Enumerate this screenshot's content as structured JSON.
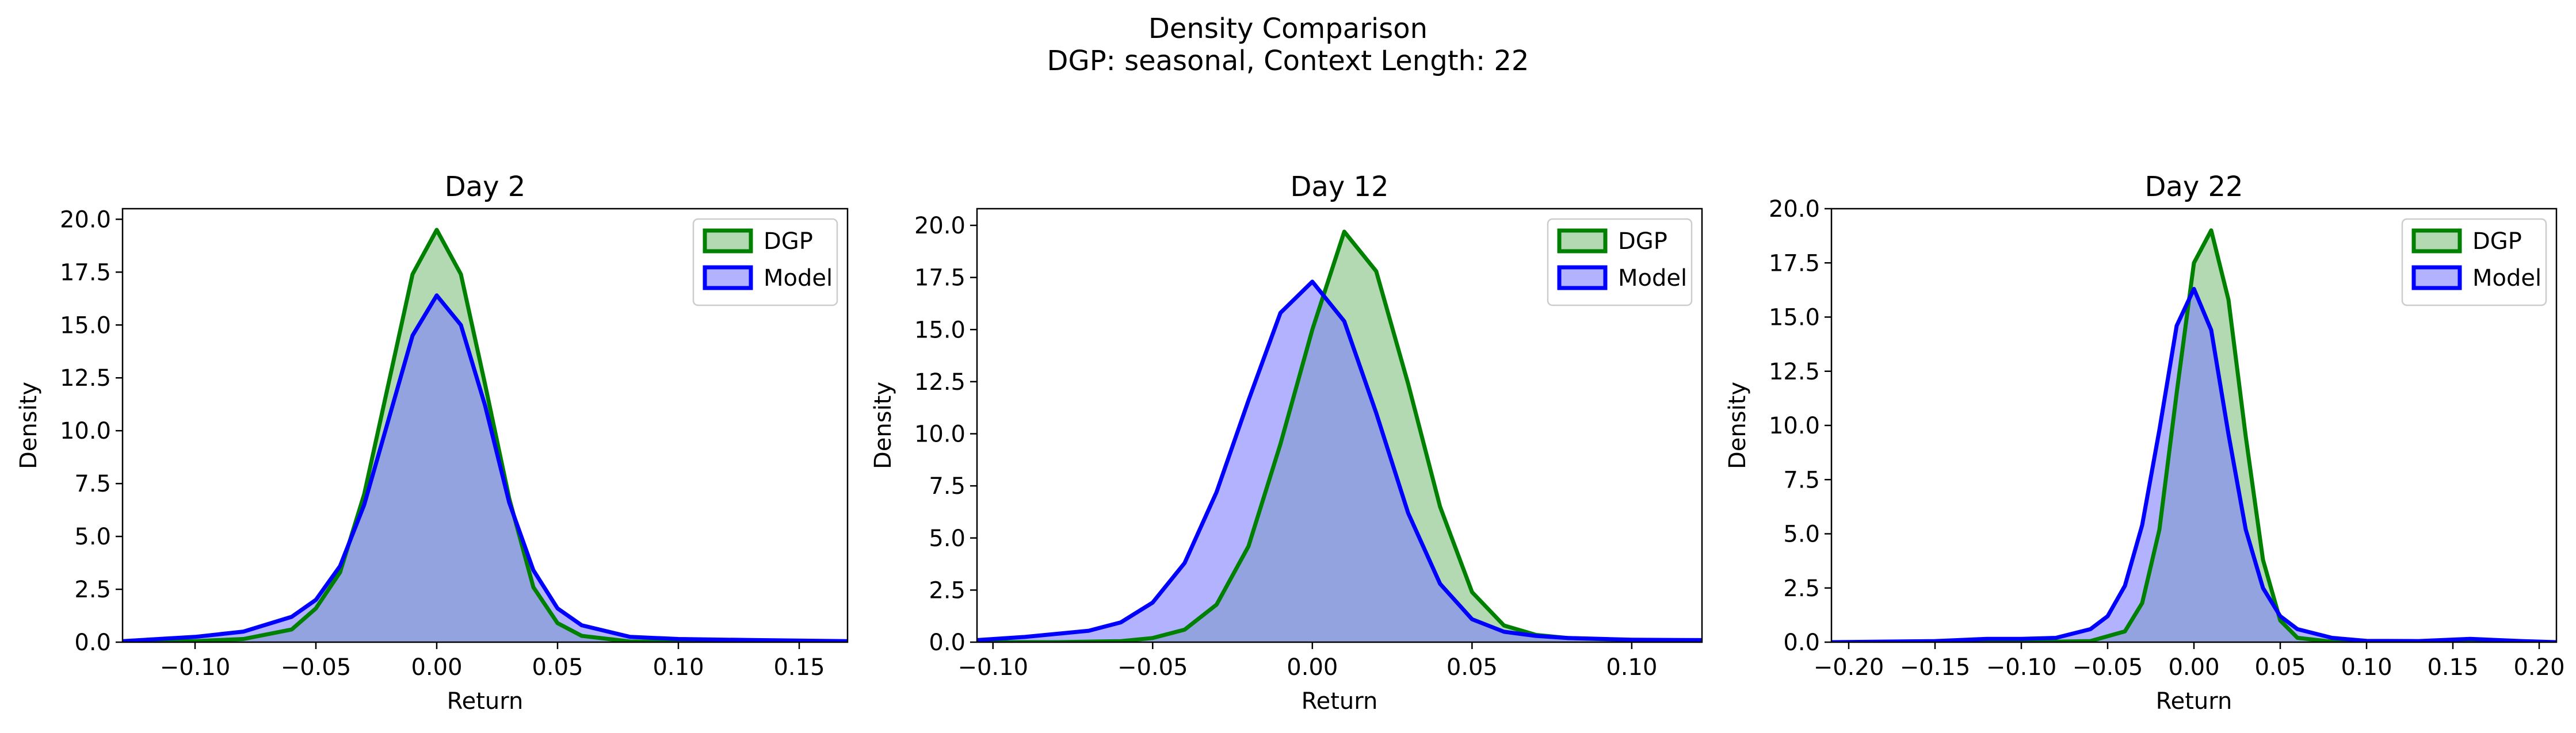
{
  "figure": {
    "title": "Density Comparison",
    "subtitle": "DGP: seasonal, Context Length: 22"
  },
  "colors": {
    "dgp_line": "#008000",
    "dgp_fill": "#7fbf7f",
    "model_line": "#0000ff",
    "model_fill": "#7f7fff"
  },
  "chart_data": [
    {
      "type": "area",
      "title": "Day 2",
      "xlabel": "Return",
      "ylabel": "Density",
      "xlim": [
        -0.13,
        0.17
      ],
      "ylim": [
        0,
        20.5
      ],
      "xticks": [
        -0.1,
        -0.05,
        0.0,
        0.05,
        0.1,
        0.15
      ],
      "xtick_labels": [
        "−0.10",
        "−0.05",
        "0.00",
        "0.05",
        "0.10",
        "0.15"
      ],
      "yticks": [
        0,
        2.5,
        5,
        7.5,
        10,
        12.5,
        15,
        17.5,
        20
      ],
      "ytick_labels": [
        "0.0",
        "2.5",
        "5.0",
        "7.5",
        "10.0",
        "12.5",
        "15.0",
        "17.5",
        "20.0"
      ],
      "legend": "top-right",
      "grid": false,
      "series": [
        {
          "name": "DGP",
          "x": [
            -0.13,
            -0.1,
            -0.08,
            -0.06,
            -0.05,
            -0.04,
            -0.03,
            -0.02,
            -0.01,
            0.0,
            0.01,
            0.02,
            0.03,
            0.04,
            0.05,
            0.06,
            0.08,
            0.1,
            0.13,
            0.17
          ],
          "y": [
            0.0,
            0.05,
            0.15,
            0.6,
            1.6,
            3.3,
            7.0,
            12.2,
            17.4,
            19.5,
            17.4,
            12.2,
            6.8,
            2.6,
            0.9,
            0.3,
            0.03,
            0.0,
            0.0,
            0.0
          ]
        },
        {
          "name": "Model",
          "x": [
            -0.13,
            -0.1,
            -0.08,
            -0.06,
            -0.05,
            -0.04,
            -0.03,
            -0.02,
            -0.01,
            0.0,
            0.01,
            0.02,
            0.03,
            0.04,
            0.05,
            0.06,
            0.08,
            0.1,
            0.13,
            0.17
          ],
          "y": [
            0.05,
            0.25,
            0.5,
            1.2,
            2.0,
            3.6,
            6.5,
            10.5,
            14.5,
            16.4,
            15.0,
            11.2,
            6.6,
            3.4,
            1.6,
            0.8,
            0.25,
            0.15,
            0.1,
            0.05
          ]
        }
      ]
    },
    {
      "type": "area",
      "title": "Day 12",
      "xlabel": "Return",
      "ylabel": "Density",
      "xlim": [
        -0.105,
        0.122
      ],
      "ylim": [
        0,
        20.8
      ],
      "xticks": [
        -0.1,
        -0.05,
        0.0,
        0.05,
        0.1
      ],
      "xtick_labels": [
        "−0.10",
        "−0.05",
        "0.00",
        "0.05",
        "0.10"
      ],
      "yticks": [
        0,
        2.5,
        5,
        7.5,
        10,
        12.5,
        15,
        17.5,
        20
      ],
      "ytick_labels": [
        "0.0",
        "2.5",
        "5.0",
        "7.5",
        "10.0",
        "12.5",
        "15.0",
        "17.5",
        "20.0"
      ],
      "legend": "top-right",
      "grid": false,
      "series": [
        {
          "name": "DGP",
          "x": [
            -0.105,
            -0.08,
            -0.06,
            -0.05,
            -0.04,
            -0.03,
            -0.02,
            -0.01,
            0.0,
            0.01,
            0.02,
            0.03,
            0.04,
            0.05,
            0.06,
            0.07,
            0.08,
            0.1,
            0.122
          ],
          "y": [
            0.0,
            0.0,
            0.05,
            0.2,
            0.6,
            1.8,
            4.6,
            9.5,
            15.0,
            19.7,
            17.8,
            12.4,
            6.5,
            2.4,
            0.8,
            0.35,
            0.2,
            0.1,
            0.05
          ]
        },
        {
          "name": "Model",
          "x": [
            -0.105,
            -0.09,
            -0.07,
            -0.06,
            -0.05,
            -0.04,
            -0.03,
            -0.02,
            -0.01,
            0.0,
            0.01,
            0.02,
            0.03,
            0.04,
            0.05,
            0.06,
            0.07,
            0.08,
            0.1,
            0.122
          ],
          "y": [
            0.1,
            0.25,
            0.55,
            0.95,
            1.9,
            3.8,
            7.2,
            11.6,
            15.8,
            17.3,
            15.4,
            11.0,
            6.2,
            2.8,
            1.1,
            0.5,
            0.3,
            0.2,
            0.12,
            0.1
          ]
        }
      ]
    },
    {
      "type": "area",
      "title": "Day 22",
      "xlabel": "Return",
      "ylabel": "Density",
      "xlim": [
        -0.21,
        0.21
      ],
      "ylim": [
        0,
        20.0
      ],
      "xticks": [
        -0.2,
        -0.15,
        -0.1,
        -0.05,
        0.0,
        0.05,
        0.1,
        0.15,
        0.2
      ],
      "xtick_labels": [
        "−0.20",
        "−0.15",
        "−0.10",
        "−0.05",
        "0.00",
        "0.05",
        "0.10",
        "0.15",
        "0.20"
      ],
      "yticks": [
        0,
        2.5,
        5,
        7.5,
        10,
        12.5,
        15,
        17.5,
        20
      ],
      "ytick_labels": [
        "0.0",
        "2.5",
        "5.0",
        "7.5",
        "10.0",
        "12.5",
        "15.0",
        "17.5",
        "20.0"
      ],
      "legend": "top-right",
      "grid": false,
      "series": [
        {
          "name": "DGP",
          "x": [
            -0.21,
            -0.1,
            -0.06,
            -0.04,
            -0.03,
            -0.02,
            -0.01,
            0.0,
            0.01,
            0.02,
            0.03,
            0.04,
            0.05,
            0.06,
            0.08,
            0.1,
            0.21
          ],
          "y": [
            0.0,
            0.0,
            0.05,
            0.5,
            1.8,
            5.2,
            11.5,
            17.5,
            19.0,
            15.8,
            9.5,
            3.8,
            1.0,
            0.2,
            0.02,
            0.0,
            0.0
          ]
        },
        {
          "name": "Model",
          "x": [
            -0.21,
            -0.15,
            -0.12,
            -0.1,
            -0.08,
            -0.06,
            -0.05,
            -0.04,
            -0.03,
            -0.02,
            -0.01,
            0.0,
            0.01,
            0.02,
            0.03,
            0.04,
            0.05,
            0.06,
            0.08,
            0.1,
            0.13,
            0.16,
            0.19,
            0.21
          ],
          "y": [
            0.0,
            0.05,
            0.15,
            0.15,
            0.2,
            0.6,
            1.2,
            2.6,
            5.4,
            9.8,
            14.6,
            16.3,
            14.4,
            9.6,
            5.2,
            2.5,
            1.2,
            0.6,
            0.2,
            0.06,
            0.05,
            0.15,
            0.05,
            0.0
          ]
        }
      ]
    }
  ]
}
